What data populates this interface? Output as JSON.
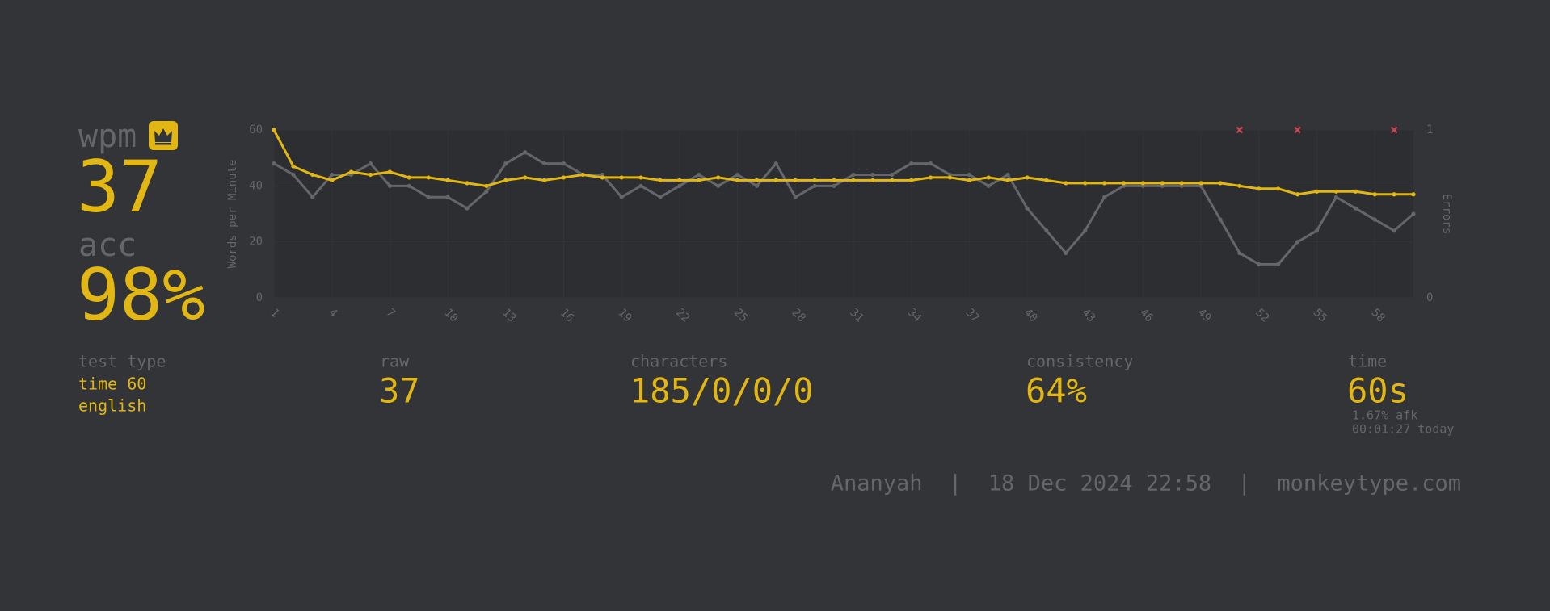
{
  "stats": {
    "wpm": {
      "label": "wpm",
      "value": "37"
    },
    "acc": {
      "label": "acc",
      "value": "98%"
    },
    "test_type": {
      "label": "test type",
      "lines": [
        "time 60",
        "english"
      ]
    },
    "raw": {
      "label": "raw",
      "value": "37"
    },
    "characters": {
      "label": "characters",
      "value": "185/0/0/0"
    },
    "consistency": {
      "label": "consistency",
      "value": "64%"
    },
    "time": {
      "label": "time",
      "value": "60s",
      "notes": [
        "1.67% afk",
        "00:01:27 today"
      ]
    },
    "footer": "Ananyah  |  18 Dec 2024 22:58  |  monkeytype.com"
  },
  "chart_data": {
    "type": "line",
    "y_label": "Words per Minute",
    "y2_label": "Errors",
    "x": [
      1,
      2,
      3,
      4,
      5,
      6,
      7,
      8,
      9,
      10,
      11,
      12,
      13,
      14,
      15,
      16,
      17,
      18,
      19,
      20,
      21,
      22,
      23,
      24,
      25,
      26,
      27,
      28,
      29,
      30,
      31,
      32,
      33,
      34,
      35,
      36,
      37,
      38,
      39,
      40,
      41,
      42,
      43,
      44,
      45,
      46,
      47,
      48,
      49,
      50,
      51,
      52,
      53,
      54,
      55,
      56,
      57,
      58,
      59,
      60
    ],
    "xlim": [
      1,
      60
    ],
    "xticks": [
      1,
      4,
      7,
      10,
      13,
      16,
      19,
      22,
      25,
      28,
      31,
      34,
      37,
      40,
      43,
      46,
      49,
      52,
      55,
      58
    ],
    "ylim": [
      0,
      60
    ],
    "yticks": [
      0,
      20,
      40,
      60
    ],
    "y2lim": [
      0,
      1
    ],
    "y2ticks": [
      0,
      1
    ],
    "grid": true,
    "series": [
      {
        "color": "#646669",
        "values": [
          48,
          44,
          36,
          44,
          44,
          48,
          40,
          40,
          36,
          36,
          32,
          38,
          48,
          52,
          48,
          48,
          44,
          44,
          36,
          40,
          36,
          40,
          44,
          40,
          44,
          40,
          48,
          36,
          40,
          40,
          44,
          44,
          44,
          48,
          48,
          44,
          44,
          40,
          44,
          32,
          24,
          16,
          24,
          36,
          40,
          40,
          40,
          40,
          40,
          28,
          16,
          12,
          12,
          20,
          24,
          36,
          32,
          28,
          24,
          30
        ]
      },
      {
        "color": "#e2b714",
        "values": [
          60,
          47,
          44,
          42,
          45,
          44,
          45,
          43,
          43,
          42,
          41,
          40,
          42,
          43,
          42,
          43,
          44,
          43,
          43,
          43,
          42,
          42,
          42,
          43,
          42,
          42,
          42,
          42,
          42,
          42,
          42,
          42,
          42,
          42,
          43,
          43,
          42,
          43,
          42,
          43,
          42,
          41,
          41,
          41,
          41,
          41,
          41,
          41,
          41,
          41,
          40,
          39,
          39,
          37,
          38,
          38,
          38,
          37,
          37,
          37
        ]
      },
      {
        "color": "#ca4754",
        "axis": "y2",
        "marker": "cross",
        "show_line": false,
        "values": [
          null,
          null,
          null,
          null,
          null,
          null,
          null,
          null,
          null,
          null,
          null,
          null,
          null,
          null,
          null,
          null,
          null,
          null,
          null,
          null,
          null,
          null,
          null,
          null,
          null,
          null,
          null,
          null,
          null,
          null,
          null,
          null,
          null,
          null,
          null,
          null,
          null,
          null,
          null,
          null,
          null,
          null,
          null,
          null,
          null,
          null,
          null,
          null,
          null,
          null,
          1,
          null,
          null,
          1,
          null,
          null,
          null,
          null,
          1,
          null
        ]
      }
    ]
  }
}
